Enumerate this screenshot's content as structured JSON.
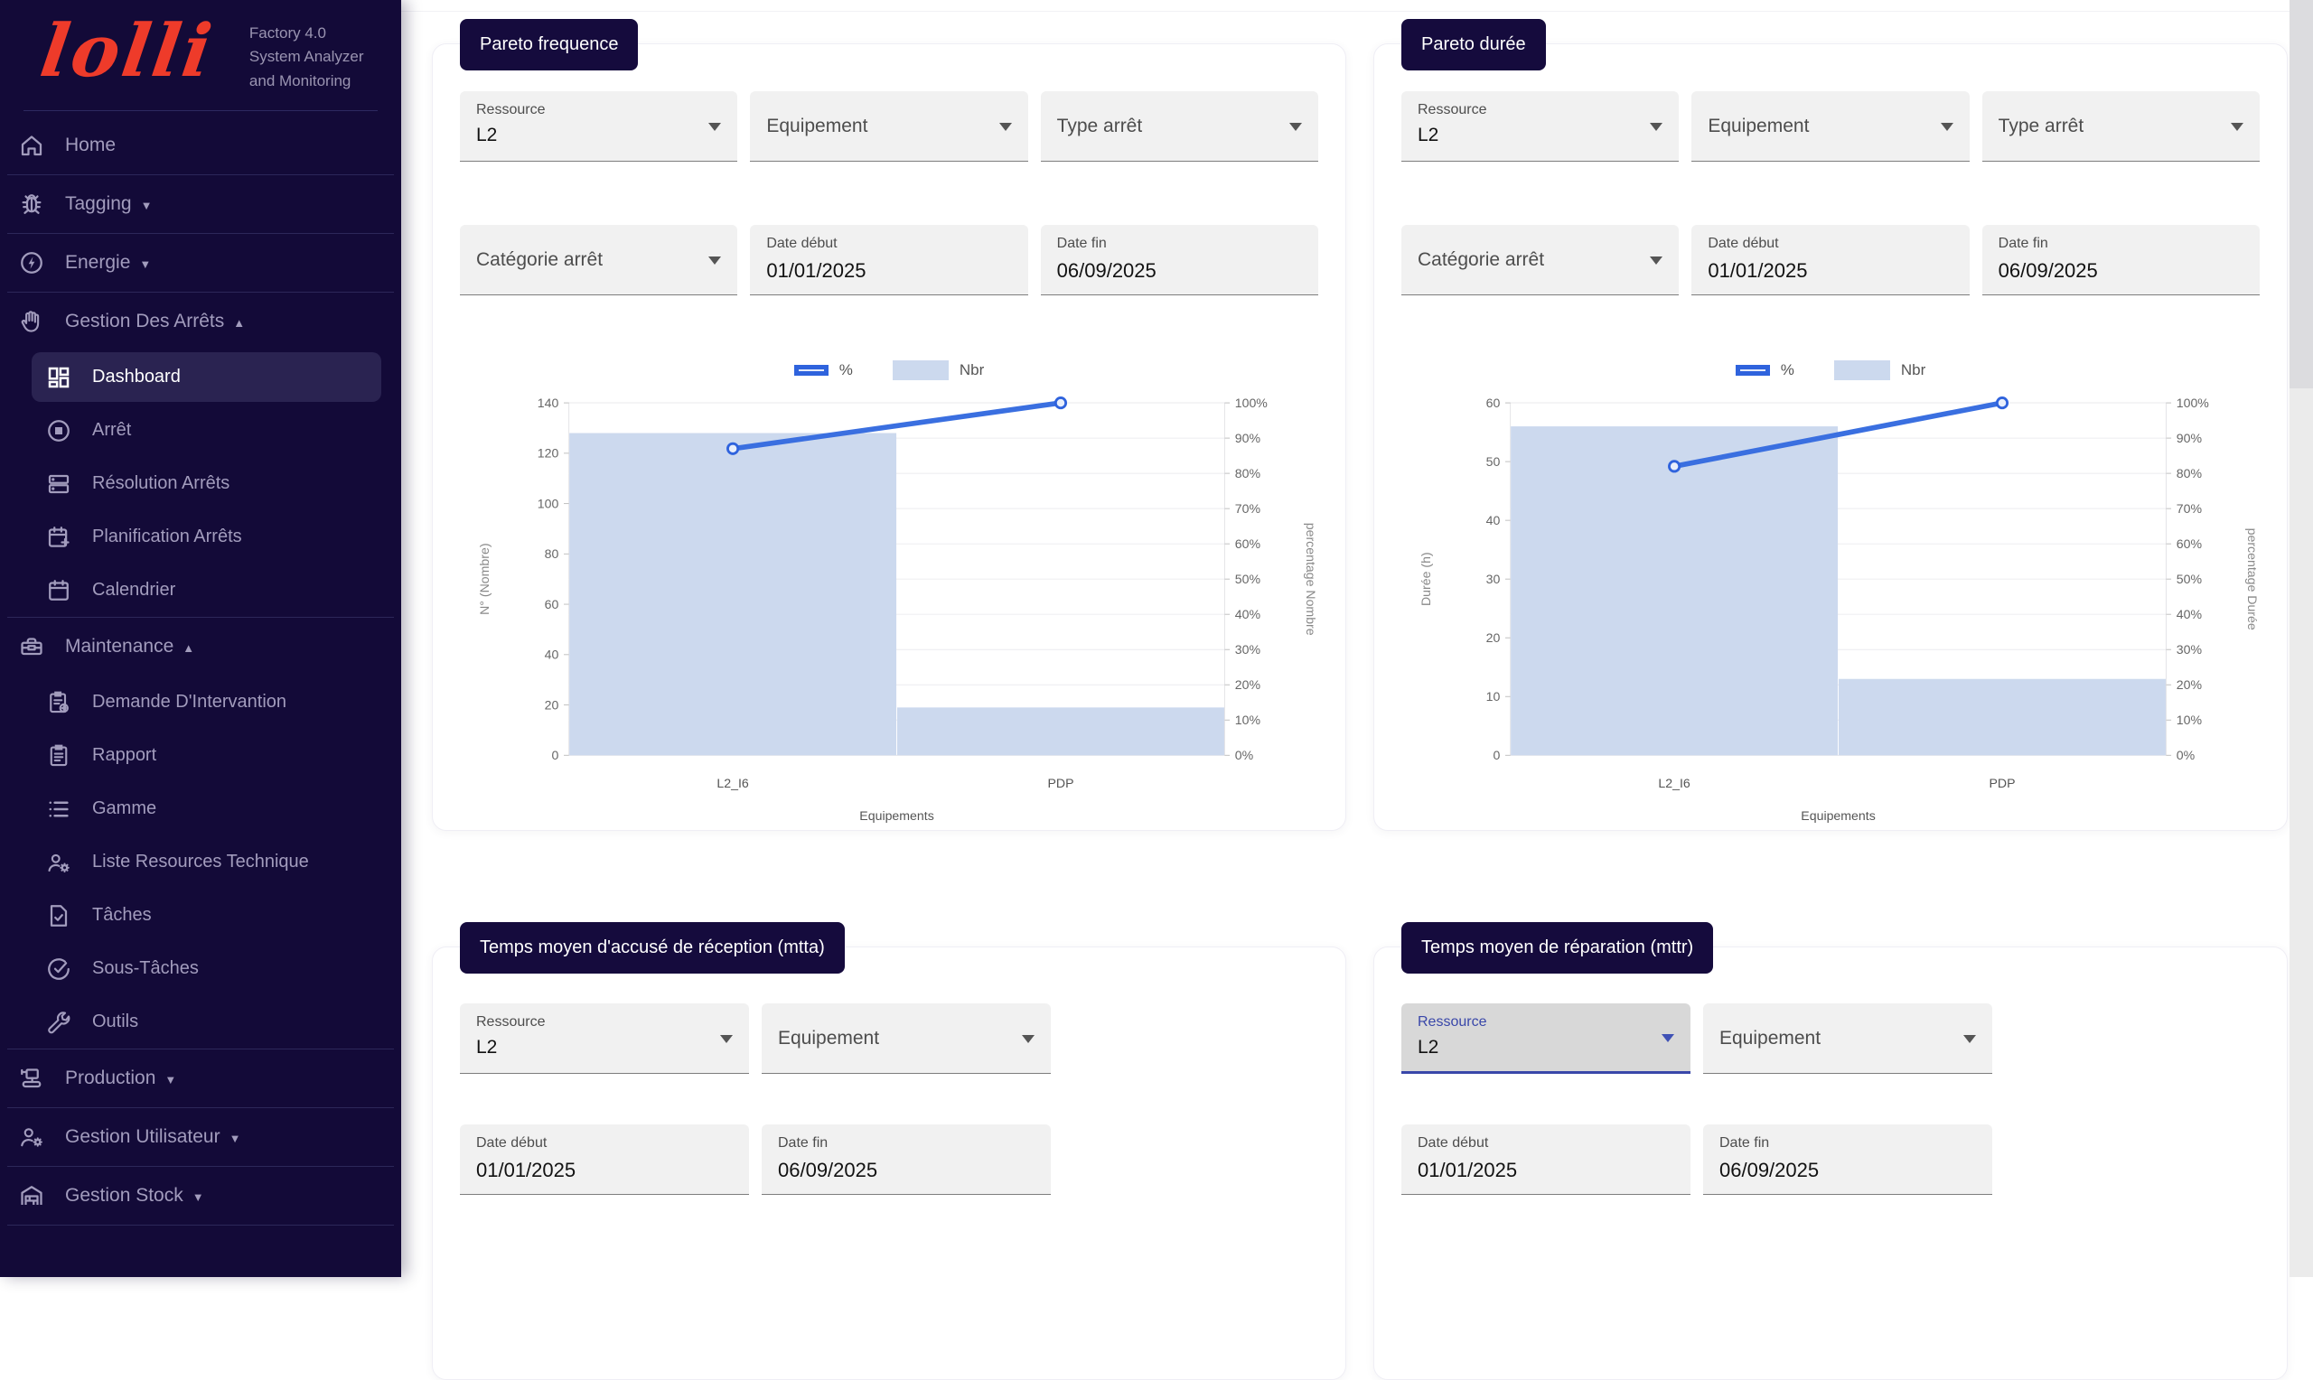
{
  "sidebar": {
    "logo": "lolli",
    "product_lines": [
      "Factory 4.0",
      "System Analyzer",
      "and Monitoring"
    ],
    "items": [
      {
        "name": "home",
        "icon": "home",
        "label": "Home"
      },
      {
        "divider": true
      },
      {
        "name": "tagging",
        "icon": "bug",
        "label": "Tagging",
        "arrow": "down"
      },
      {
        "divider": true
      },
      {
        "name": "energie",
        "icon": "bolt",
        "label": "Energie",
        "arrow": "down"
      },
      {
        "divider": true
      },
      {
        "name": "gestion-des-arrets",
        "icon": "hand",
        "label": "Gestion Des Arrêts",
        "arrow": "up"
      },
      {
        "name": "dashboard",
        "icon": "dashboard",
        "label": "Dashboard",
        "sub": true,
        "selected": true
      },
      {
        "name": "arret",
        "icon": "stop",
        "label": "Arrêt",
        "sub": true
      },
      {
        "name": "resolution-arrets",
        "icon": "storage",
        "label": "Résolution Arrêts",
        "sub": true
      },
      {
        "name": "planification-arrets",
        "icon": "calendar-plus",
        "label": "Planification Arrêts",
        "sub": true
      },
      {
        "name": "calendrier",
        "icon": "calendar",
        "label": "Calendrier",
        "sub": true
      },
      {
        "divider": true
      },
      {
        "name": "maintenance",
        "icon": "toolbox",
        "label": "Maintenance",
        "arrow": "up"
      },
      {
        "name": "demande-dintervantion",
        "icon": "clipboard-plus",
        "label": "Demande D'Intervantion",
        "sub": true
      },
      {
        "name": "rapport",
        "icon": "clipboard",
        "label": "Rapport",
        "sub": true
      },
      {
        "name": "gamme",
        "icon": "list",
        "label": "Gamme",
        "sub": true
      },
      {
        "name": "liste-resources-technique",
        "icon": "engineer",
        "label": "Liste Resources Technique",
        "sub": true
      },
      {
        "name": "taches",
        "icon": "doc-check",
        "label": "Tâches",
        "sub": true
      },
      {
        "name": "sous-taches",
        "icon": "check-circle",
        "label": "Sous-Tâches",
        "sub": true
      },
      {
        "name": "outils",
        "icon": "wrench",
        "label": "Outils",
        "sub": true
      },
      {
        "divider": true
      },
      {
        "name": "production",
        "icon": "production",
        "label": "Production",
        "arrow": "down"
      },
      {
        "divider": true
      },
      {
        "name": "gestion-utilisateur",
        "icon": "user-gear",
        "label": "Gestion Utilisateur",
        "arrow": "down"
      },
      {
        "divider": true
      },
      {
        "name": "gestion-stock",
        "icon": "warehouse",
        "label": "Gestion Stock",
        "arrow": "down"
      },
      {
        "divider": true
      }
    ]
  },
  "cards": {
    "pareto_frequence": {
      "badge": "Pareto frequence",
      "filters": {
        "ressource": {
          "label": "Ressource",
          "value": "L2"
        },
        "equipement": {
          "label": "Equipement"
        },
        "type_arret": {
          "label": "Type arrêt"
        },
        "categorie_arret": {
          "label": "Catégorie arrêt"
        },
        "date_debut": {
          "label": "Date début",
          "value": "01/01/2025"
        },
        "date_fin": {
          "label": "Date fin",
          "value": "06/09/2025"
        }
      }
    },
    "pareto_duree": {
      "badge": "Pareto durée",
      "filters": {
        "ressource": {
          "label": "Ressource",
          "value": "L2"
        },
        "equipement": {
          "label": "Equipement"
        },
        "type_arret": {
          "label": "Type arrêt"
        },
        "categorie_arret": {
          "label": "Catégorie arrêt"
        },
        "date_debut": {
          "label": "Date début",
          "value": "01/01/2025"
        },
        "date_fin": {
          "label": "Date fin",
          "value": "06/09/2025"
        }
      }
    },
    "mtta": {
      "badge": "Temps moyen d'accusé de réception (mtta)",
      "filters": {
        "ressource": {
          "label": "Ressource",
          "value": "L2"
        },
        "equipement": {
          "label": "Equipement"
        },
        "date_debut": {
          "label": "Date début",
          "value": "01/01/2025"
        },
        "date_fin": {
          "label": "Date fin",
          "value": "06/09/2025"
        }
      }
    },
    "mttr": {
      "badge": "Temps moyen de réparation (mttr)",
      "filters": {
        "ressource": {
          "label": "Ressource",
          "value": "L2",
          "focused": true
        },
        "equipement": {
          "label": "Equipement"
        },
        "date_debut": {
          "label": "Date début",
          "value": "01/01/2025"
        },
        "date_fin": {
          "label": "Date fin",
          "value": "06/09/2025"
        }
      }
    }
  },
  "chart_data": [
    {
      "type": "bar",
      "title": "Pareto frequence",
      "categories": [
        "L2_I6",
        "PDP"
      ],
      "series": [
        {
          "name": "Nbr",
          "type": "bar",
          "values": [
            128,
            19
          ]
        },
        {
          "name": "%",
          "type": "line",
          "values": [
            87,
            100
          ]
        }
      ],
      "legend": [
        "%",
        "Nbr"
      ],
      "xlabel": "Equipements",
      "ylabel_left": "N° (Nombre)",
      "ylabel_right": "percentage Nombre",
      "ylim_left": [
        0,
        140
      ],
      "ytick_left_step": 20,
      "ylim_right": [
        0,
        100
      ],
      "ytick_right_step": 10,
      "grid": true,
      "legend_position": "top"
    },
    {
      "type": "bar",
      "title": "Pareto durée",
      "categories": [
        "L2_I6",
        "PDP"
      ],
      "series": [
        {
          "name": "Nbr",
          "type": "bar",
          "values": [
            56,
            13
          ]
        },
        {
          "name": "%",
          "type": "line",
          "values": [
            82,
            100
          ]
        }
      ],
      "legend": [
        "%",
        "Nbr"
      ],
      "xlabel": "Equipements",
      "ylabel_left": "Durée (h)",
      "ylabel_right": "percentage Durée",
      "ylim_left": [
        0,
        60
      ],
      "ytick_left_step": 10,
      "ylim_right": [
        0,
        100
      ],
      "ytick_right_step": 10,
      "grid": true,
      "legend_position": "top"
    }
  ],
  "colors": {
    "sidebar_bg": "#130a38",
    "sidebar_selected_bg": "#2a2351",
    "logo_red": "#ee3b2a",
    "badge_bg": "#150b3d",
    "bar_fill": "#ccd9ee",
    "line_blue": "#3a6fe0",
    "legend_border_blue": "#2f63dd",
    "focus_indigo": "#3947a9"
  }
}
